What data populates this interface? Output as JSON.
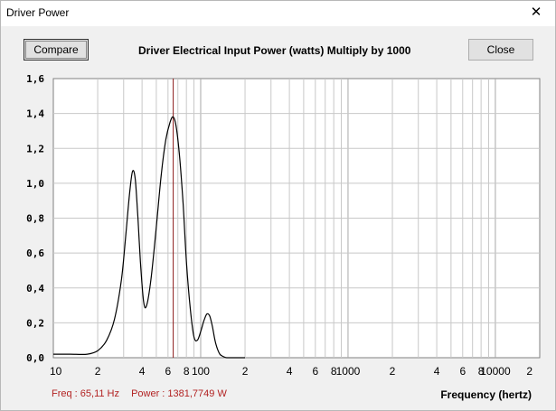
{
  "window": {
    "title": "Driver Power",
    "close_glyph": "✕"
  },
  "toolbar": {
    "compare_label": "Compare",
    "close_label": "Close"
  },
  "chart_heading": "Driver Electrical Input Power (watts)   Multiply by 1000",
  "readout": {
    "freq": "Freq : 65,11 Hz",
    "power": "Power : 1381,7749 W"
  },
  "xaxis_title": "Frequency (hertz)",
  "colors": {
    "curve": "#000000",
    "cursor": "#8b1a1a",
    "grid": "#c8c8c8",
    "readout": "#b22222"
  },
  "chart_data": {
    "type": "line",
    "title": "Driver Electrical Input Power (watts)   Multiply by 1000",
    "xlabel": "Frequency (hertz)",
    "ylabel": "",
    "x_scale": "log",
    "xlim": [
      10,
      20000
    ],
    "ylim": [
      0,
      1.6
    ],
    "y_ticks": [
      "0,0",
      "0,2",
      "0,4",
      "0,6",
      "0,8",
      "1,0",
      "1,2",
      "1,4",
      "1,6"
    ],
    "x_ticks": [
      {
        "value": 10,
        "label": "10"
      },
      {
        "value": 20,
        "label": "2"
      },
      {
        "value": 40,
        "label": "4"
      },
      {
        "value": 60,
        "label": "6"
      },
      {
        "value": 80,
        "label": "8"
      },
      {
        "value": 100,
        "label": "100"
      },
      {
        "value": 200,
        "label": "2"
      },
      {
        "value": 400,
        "label": "4"
      },
      {
        "value": 600,
        "label": "6"
      },
      {
        "value": 800,
        "label": "8"
      },
      {
        "value": 1000,
        "label": "1000"
      },
      {
        "value": 2000,
        "label": "2"
      },
      {
        "value": 4000,
        "label": "4"
      },
      {
        "value": 6000,
        "label": "6"
      },
      {
        "value": 8000,
        "label": "8"
      },
      {
        "value": 10000,
        "label": "10000"
      },
      {
        "value": 20000,
        "label": "2"
      }
    ],
    "cursor_x": 65.11,
    "series": [
      {
        "x": [
          10,
          13,
          17,
          20,
          23,
          26,
          29,
          31,
          33,
          34.5,
          36,
          37.5,
          39,
          41,
          43,
          46,
          50,
          54,
          58,
          62,
          65,
          68,
          72,
          76,
          80,
          85,
          90,
          95,
          100,
          105,
          110,
          115,
          120,
          125,
          130,
          135,
          140,
          150,
          160,
          180,
          200
        ],
        "y": [
          0.02,
          0.02,
          0.02,
          0.04,
          0.1,
          0.22,
          0.45,
          0.7,
          0.95,
          1.07,
          1.02,
          0.8,
          0.55,
          0.32,
          0.3,
          0.45,
          0.75,
          1.05,
          1.25,
          1.35,
          1.38,
          1.33,
          1.15,
          0.88,
          0.55,
          0.28,
          0.12,
          0.1,
          0.15,
          0.21,
          0.25,
          0.24,
          0.18,
          0.1,
          0.05,
          0.02,
          0.01,
          0.0,
          0.0,
          0.0,
          0.0
        ]
      }
    ],
    "grid": true
  }
}
